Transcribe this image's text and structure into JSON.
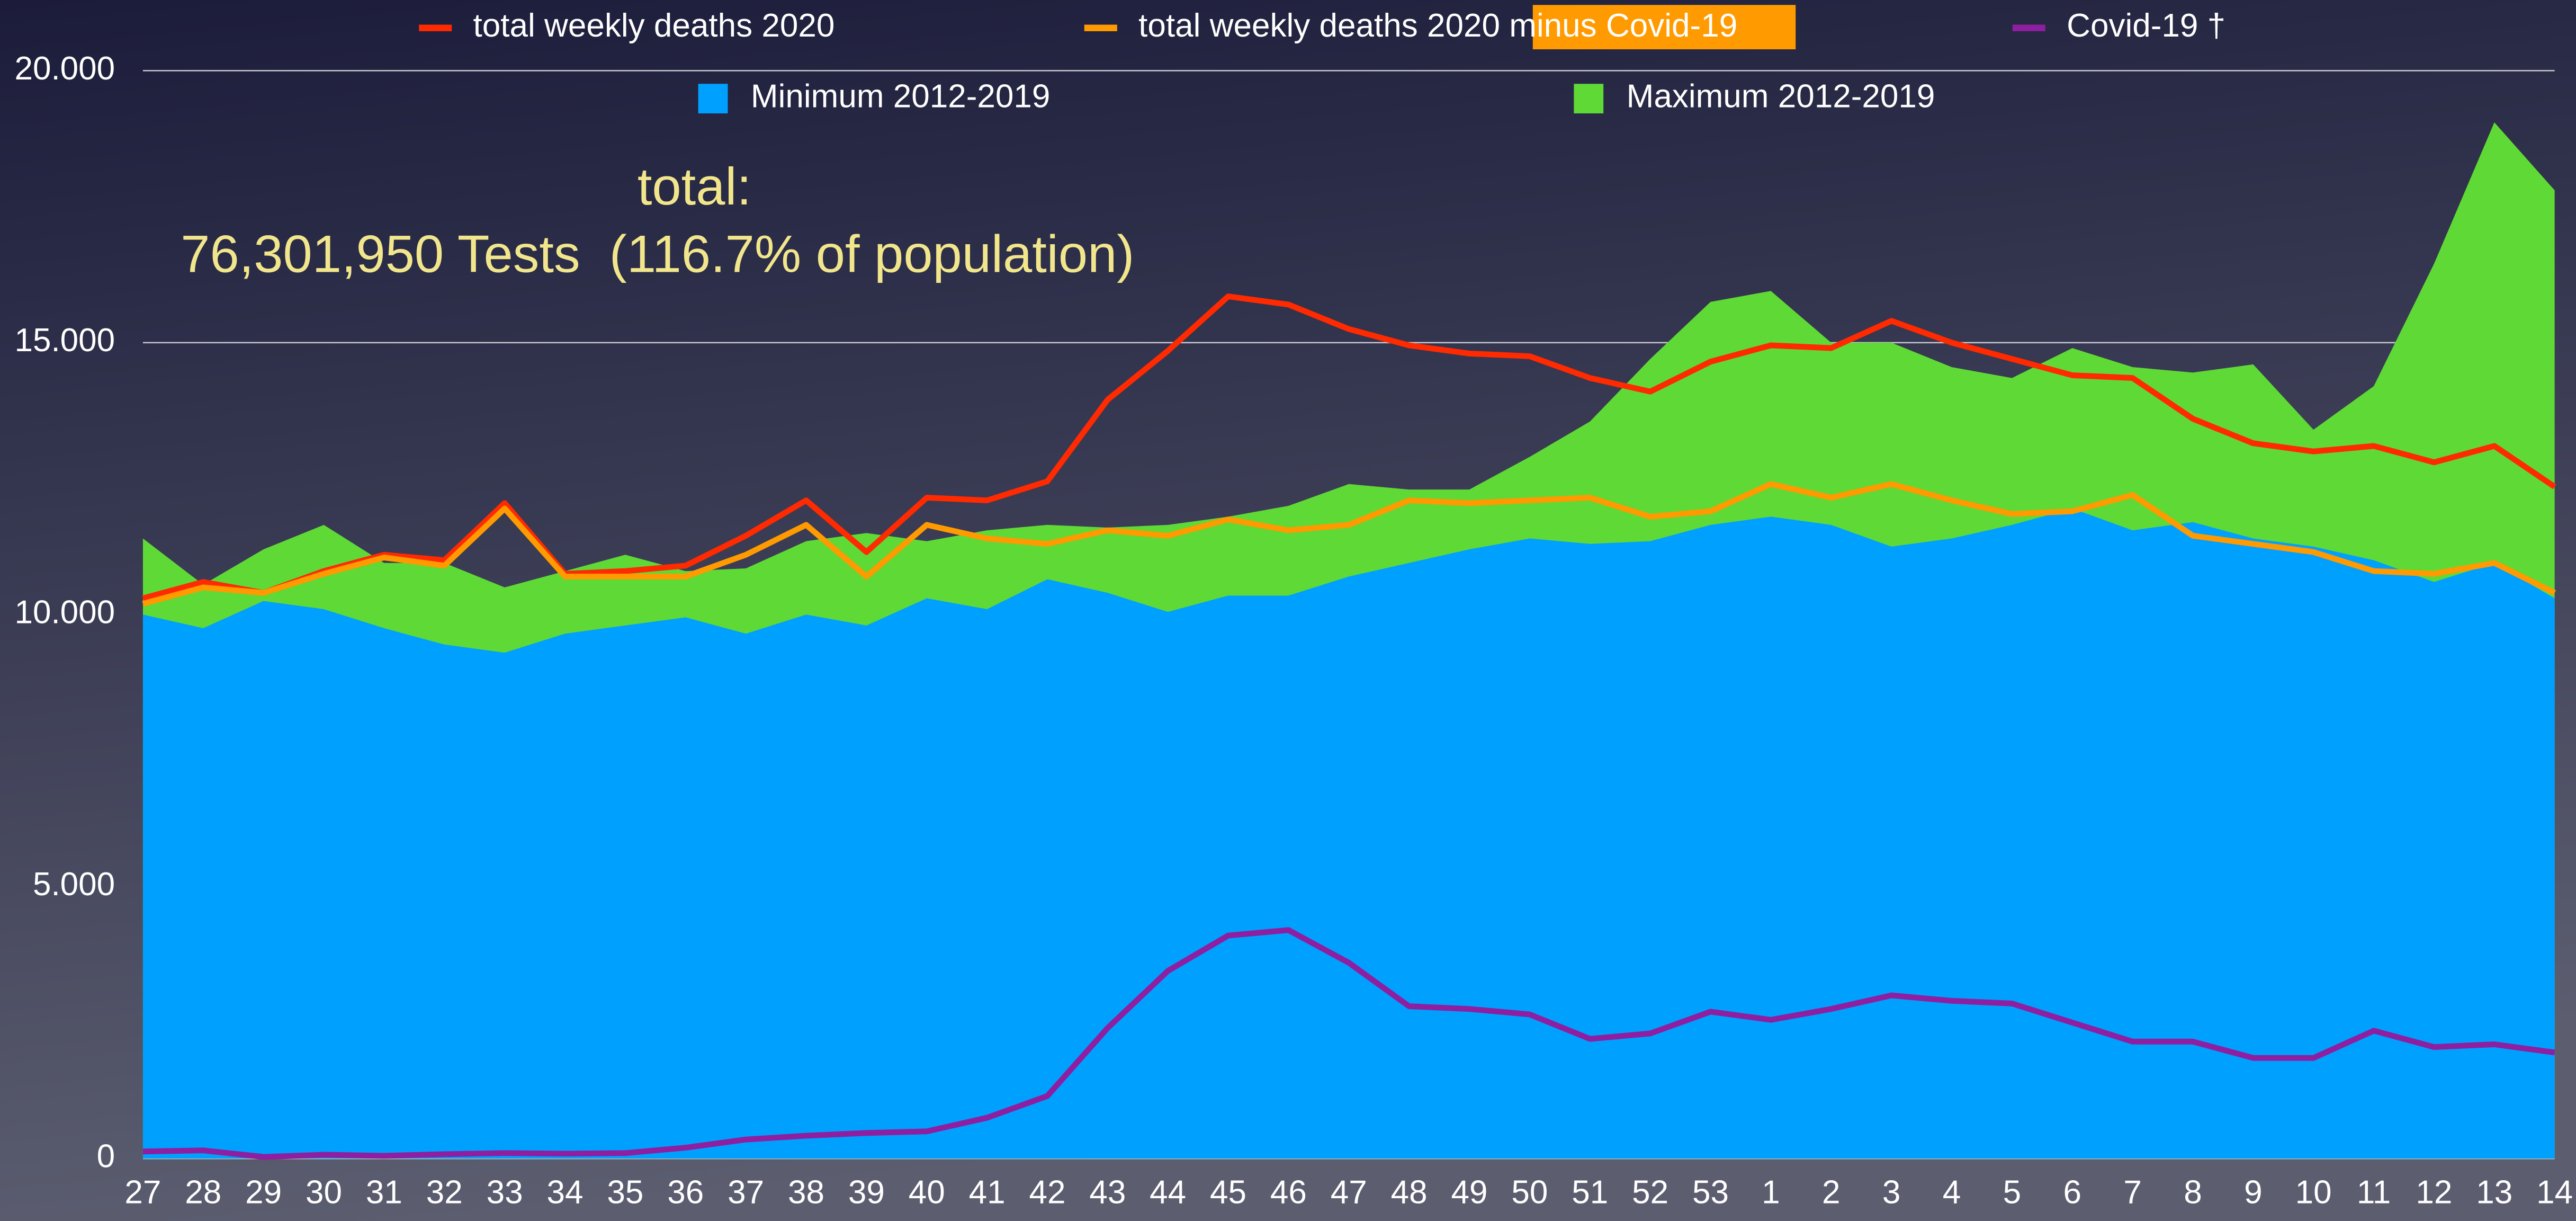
{
  "chart_data": {
    "type": "line",
    "annotations": [
      "total:",
      "76,301,950 Tests  (116.7% of population)"
    ],
    "categories": [
      "27",
      "28",
      "29",
      "30",
      "31",
      "32",
      "33",
      "34",
      "35",
      "36",
      "37",
      "38",
      "39",
      "40",
      "41",
      "42",
      "43",
      "44",
      "45",
      "46",
      "47",
      "48",
      "49",
      "50",
      "51",
      "52",
      "53",
      "1",
      "2",
      "3",
      "4",
      "5",
      "6",
      "7",
      "8",
      "9",
      "10",
      "11",
      "12",
      "13",
      "14"
    ],
    "series": [
      {
        "name": "total weekly deaths 2020",
        "color": "#ff2a00",
        "kind": "line",
        "values": [
          10300,
          10600,
          10400,
          10800,
          11100,
          11000,
          12050,
          10750,
          10800,
          10900,
          11450,
          12100,
          11150,
          12150,
          12100,
          12450,
          13950,
          14850,
          15850,
          15700,
          15250,
          14950,
          14800,
          14750,
          14350,
          14100,
          14650,
          14950,
          14900,
          15400,
          15000,
          14700,
          14400,
          14350,
          13600,
          13150,
          13000,
          13100,
          12800,
          13100,
          12350
        ]
      },
      {
        "name": "total weekly deaths 2020 minus Covid-19",
        "color": "#ff9a00",
        "kind": "line",
        "values": [
          10200,
          10500,
          10400,
          10750,
          11050,
          10900,
          11950,
          10700,
          10700,
          10700,
          11100,
          11650,
          10700,
          11650,
          11400,
          11300,
          11550,
          11450,
          11750,
          11550,
          11650,
          12100,
          12050,
          12100,
          12150,
          11800,
          11900,
          12400,
          12150,
          12400,
          12100,
          11850,
          11900,
          12200,
          11450,
          11300,
          11150,
          10800,
          10750,
          10950,
          10400
        ]
      },
      {
        "name": "Covid-19 †",
        "color": "#8e1fa0",
        "kind": "line",
        "values": [
          130,
          150,
          30,
          70,
          50,
          80,
          100,
          90,
          100,
          200,
          350,
          420,
          470,
          500,
          750,
          1150,
          2400,
          3450,
          4100,
          4200,
          3600,
          2800,
          2750,
          2650,
          2200,
          2300,
          2700,
          2550,
          2750,
          3000,
          2900,
          2850,
          2500,
          2150,
          2150,
          1850,
          1850,
          2350,
          2050,
          2100,
          1950
        ]
      },
      {
        "name": "Minimum 2012-2019",
        "color": "#00a0ff",
        "kind": "area",
        "values": [
          10000,
          9750,
          10250,
          10100,
          9750,
          9450,
          9300,
          9650,
          9800,
          9950,
          9650,
          10000,
          9800,
          10300,
          10100,
          10650,
          10400,
          10050,
          10350,
          10350,
          10700,
          10950,
          11200,
          11400,
          11300,
          11350,
          11650,
          11800,
          11650,
          11250,
          11400,
          11650,
          11950,
          11550,
          11700,
          11400,
          11250,
          11000,
          10600,
          10950,
          10300
        ]
      },
      {
        "name": "Maximum 2012-2019",
        "color": "#5fd935",
        "kind": "area",
        "values": [
          11400,
          10550,
          11200,
          11650,
          10950,
          10950,
          10500,
          10800,
          11100,
          10800,
          10850,
          11350,
          11500,
          11350,
          11550,
          11650,
          11600,
          11650,
          11800,
          12000,
          12400,
          12300,
          12300,
          12900,
          13550,
          14700,
          15750,
          15950,
          15000,
          15000,
          14550,
          14350,
          14900,
          14550,
          14450,
          14600,
          13400,
          14200,
          16450,
          19050,
          17800
        ]
      }
    ],
    "ylim": [
      0,
      20000
    ],
    "yticks": [
      0,
      {
        "value": 5000,
        "label": "5.000"
      },
      {
        "value": 10000,
        "label": "10.000"
      },
      {
        "value": 15000,
        "label": "15.000"
      },
      {
        "value": 20000,
        "label": "20.000"
      }
    ],
    "grid": true
  }
}
